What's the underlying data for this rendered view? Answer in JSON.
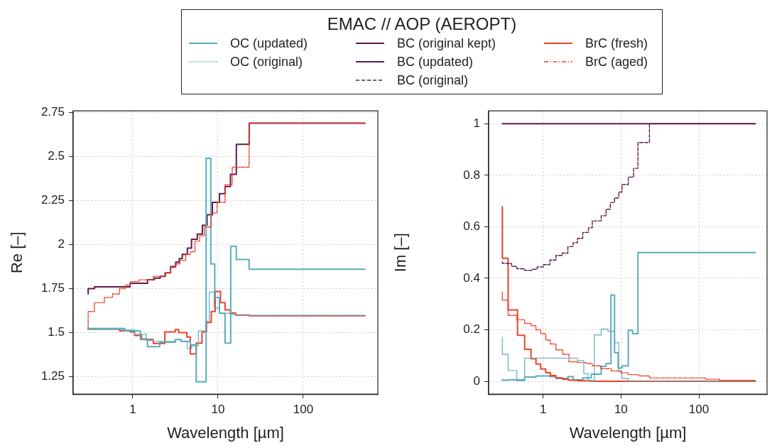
{
  "chart_data": [
    {
      "type": "step",
      "xlabel": "Wavelength [µm]",
      "ylabel": "Re [–]",
      "log": "x",
      "xlim": [
        0.2,
        750
      ],
      "xticks": [
        1,
        10,
        100
      ],
      "ylim": [
        1.15,
        2.76
      ],
      "yticks": [
        1.25,
        1.5,
        1.75,
        2,
        2.25,
        2.5,
        2.75
      ],
      "grid": true,
      "legend": "top",
      "legend_title": "EMAC // AOP (AEROPT)",
      "series": [
        {
          "name": "OC (updated)",
          "color": "#5aabbd",
          "line_style": "solid",
          "x": [
            0.3,
            0.81,
            1.23,
            1.49,
            2.07,
            3.15,
            3.69,
            4.74,
            5.55,
            7.26,
            8.23,
            9.16,
            10.4,
            12.1,
            14.1,
            16.4,
            23.2,
            124,
            530
          ],
          "values": [
            1.53,
            1.52,
            1.51,
            1.46,
            1.42,
            1.445,
            1.46,
            1.45,
            1.43,
            1.22,
            2.49,
            1.89,
            1.7,
            1.61,
            1.44,
            1.99,
            1.915,
            1.86,
            1.86
          ]
        },
        {
          "name": "OC (original)",
          "color": "#5aabbd",
          "line_style": "dotted",
          "x": [
            0.3,
            0.81,
            1.05,
            1.44,
            1.74,
            2.17,
            3.15,
            3.69,
            4.35,
            4.89,
            5.9,
            7.16,
            7.9,
            9.0,
            10.4,
            14.0,
            16.4,
            23.2,
            530
          ],
          "values": [
            1.53,
            1.525,
            1.515,
            1.49,
            1.465,
            1.45,
            1.45,
            1.46,
            1.45,
            1.41,
            1.425,
            1.51,
            1.565,
            1.73,
            1.64,
            1.61,
            1.603,
            1.598,
            1.598
          ]
        },
        {
          "name": "BC (original kept)",
          "color": "#5e1a4e",
          "line_style": "solid",
          "x": [
            0.3,
            0.355,
            0.93,
            1.49,
            1.79,
            2.1,
            2.41,
            2.78,
            3.19,
            3.51,
            3.81,
            4.37,
            4.89,
            5.72,
            6.56,
            7.44,
            8.6,
            10.4,
            12.1,
            14.0,
            16.4,
            23.2,
            124,
            530
          ],
          "values": [
            1.72,
            1.75,
            1.76,
            1.78,
            1.8,
            1.81,
            1.82,
            1.84,
            1.875,
            1.9,
            1.92,
            1.945,
            1.98,
            2.03,
            2.06,
            2.11,
            2.17,
            2.24,
            2.29,
            2.33,
            2.4,
            2.57,
            2.69,
            2.69
          ]
        },
        {
          "name": "BrC (fresh)",
          "color": "#ef4128",
          "line_style": "solid",
          "x": [
            0.3,
            0.7,
            0.93,
            1.05,
            1.27,
            1.44,
            1.74,
            2.38,
            3.15,
            3.46,
            4.31,
            4.74,
            5.55,
            6.49,
            7.34,
            8.34,
            9.27,
            10.7,
            12.1,
            14.0,
            16.1,
            23.2,
            124,
            530
          ],
          "values": [
            1.524,
            1.52,
            1.51,
            1.504,
            1.484,
            1.464,
            1.458,
            1.438,
            1.504,
            1.517,
            1.5,
            1.475,
            1.379,
            1.44,
            1.504,
            1.557,
            1.62,
            1.734,
            1.67,
            1.629,
            1.612,
            1.6,
            1.596,
            1.596
          ]
        },
        {
          "name": "BrC (aged)",
          "color": "#ef4128",
          "line_style": "dashdot",
          "x": [
            0.3,
            0.355,
            0.465,
            0.58,
            0.7,
            0.82,
            0.94,
            1.19,
            1.74,
            2.38,
            2.78,
            3.15,
            3.57,
            4.18,
            4.74,
            5.37,
            6.09,
            6.9,
            8.34,
            9.75,
            12.1,
            14.7,
            23.2,
            124,
            530
          ],
          "values": [
            1.52,
            1.62,
            1.67,
            1.7,
            1.72,
            1.75,
            1.77,
            1.79,
            1.8,
            1.82,
            1.84,
            1.87,
            1.89,
            1.91,
            1.945,
            1.96,
            2.02,
            2.05,
            2.1,
            2.18,
            2.24,
            2.34,
            2.44,
            2.69,
            2.69
          ]
        }
      ]
    },
    {
      "type": "step",
      "xlabel": "Wavelength [µm]",
      "ylabel": "Im [–]",
      "log": "x",
      "xlim": [
        0.2,
        750
      ],
      "xticks": [
        1,
        10,
        100
      ],
      "ylim": [
        -0.05,
        1.05
      ],
      "yticks": [
        0,
        0.2,
        0.4,
        0.6,
        0.8,
        1
      ],
      "grid": true,
      "legend": "top",
      "series": [
        {
          "name": "BC (updated)",
          "color": "#5e1a4e",
          "line_style": "solid",
          "x": [
            0.3,
            530
          ],
          "values": [
            1,
            1
          ]
        },
        {
          "name": "BC (original)",
          "color": "#5e1a4e",
          "line_style": "dashed",
          "x": [
            0.3,
            0.395,
            0.46,
            0.58,
            0.72,
            0.84,
            1.01,
            1.22,
            1.46,
            1.76,
            2.08,
            2.43,
            2.76,
            3.23,
            3.82,
            4.28,
            5.57,
            6.43,
            7.29,
            8.26,
            9.36,
            10.3,
            12.4,
            14.5,
            16.5,
            23.2,
            122,
            530
          ],
          "values": [
            0.464,
            0.458,
            0.446,
            0.437,
            0.431,
            0.435,
            0.444,
            0.453,
            0.471,
            0.489,
            0.498,
            0.523,
            0.538,
            0.555,
            0.578,
            0.596,
            0.623,
            0.643,
            0.668,
            0.694,
            0.712,
            0.735,
            0.764,
            0.793,
            0.827,
            0.927,
            1.0,
            1.0
          ]
        },
        {
          "name": "BrC (aged)",
          "color": "#ef4128",
          "line_style": "dashdot",
          "x": [
            0.3,
            0.356,
            0.46,
            0.58,
            0.7,
            0.81,
            0.93,
            1.08,
            1.24,
            1.46,
            1.78,
            2.15,
            2.76,
            3.55,
            4.28,
            5.5,
            7.5,
            10,
            12.4,
            17,
            23.2,
            122,
            184,
            530
          ],
          "values": [
            0.346,
            0.315,
            0.256,
            0.239,
            0.225,
            0.216,
            0.2,
            0.185,
            0.16,
            0.145,
            0.122,
            0.105,
            0.076,
            0.073,
            0.069,
            0.06,
            0.049,
            0.04,
            0.033,
            0.026,
            0.021,
            0.013,
            0.008,
            0.004
          ]
        },
        {
          "name": "OC (original)",
          "color": "#5aabbd",
          "line_style": "dotted",
          "x": [
            0.3,
            0.356,
            0.46,
            0.58,
            2.76,
            3.33,
            3.77,
            4.56,
            5.57,
            6.8,
            8.26,
            9.36,
            10.3,
            12.4,
            15.0,
            530
          ],
          "values": [
            0.17,
            0.105,
            0.042,
            0.002,
            0.09,
            0.08,
            0.03,
            0.003,
            0.18,
            0.203,
            0.194,
            0.15,
            0.04,
            0.011,
            0.002,
            0.002
          ]
        },
        {
          "name": "BrC (fresh)",
          "color": "#ef4128",
          "line_style": "solid",
          "x": [
            0.3,
            0.356,
            0.47,
            0.58,
            0.7,
            0.81,
            0.93,
            1.08,
            1.24,
            1.46,
            1.78,
            2.15,
            2.76,
            4.02,
            10,
            530
          ],
          "values": [
            0.678,
            0.478,
            0.277,
            0.179,
            0.124,
            0.088,
            0.067,
            0.048,
            0.033,
            0.022,
            0.013,
            0.008,
            0.004,
            0.002,
            0.0,
            0.0
          ]
        },
        {
          "name": "OC (updated)",
          "color": "#5aabbd",
          "line_style": "solid",
          "x": [
            0.3,
            0.36,
            0.58,
            0.81,
            1.22,
            1.46,
            2.08,
            2.43,
            3.23,
            4.15,
            5.57,
            6.43,
            7.43,
            8.26,
            9.19,
            10.3,
            12.4,
            14.1,
            16.5,
            23.2,
            530
          ],
          "values": [
            0.008,
            0.004,
            0.006,
            0.017,
            0.021,
            0.018,
            0.011,
            0.018,
            0.006,
            0.013,
            0.028,
            0.058,
            0.069,
            0.335,
            0.111,
            0.051,
            0.06,
            0.198,
            0.185,
            0.5,
            0.5
          ]
        }
      ]
    }
  ]
}
